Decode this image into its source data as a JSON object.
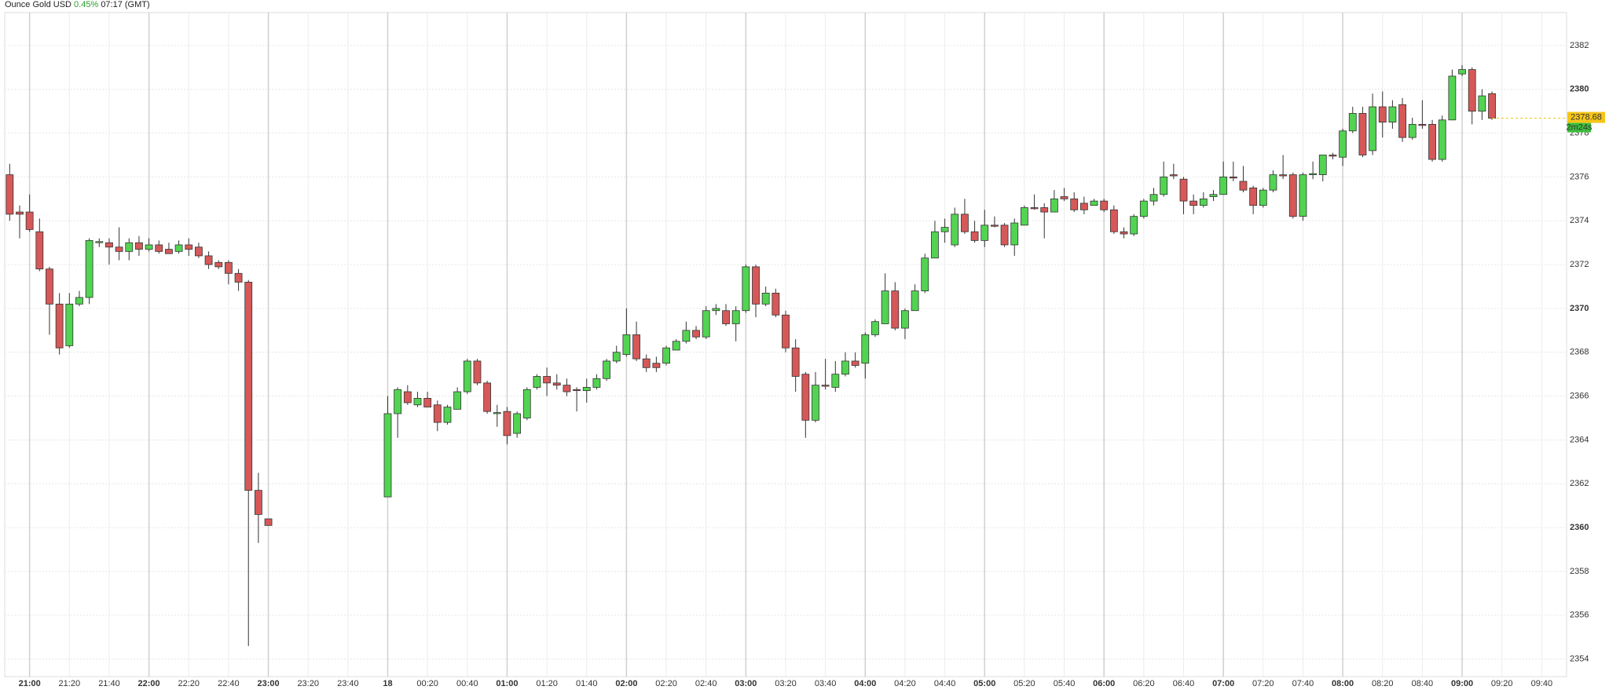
{
  "chart_data": {
    "type": "candlestick",
    "title": "Ounce Gold USD",
    "change": "0.45%",
    "time": "07:17 (GMT)",
    "countdown": "2m24s",
    "up_color": "#52d452",
    "down_color": "#d65858",
    "grid": true,
    "ylim": [
      2353.2,
      2383.5
    ],
    "yticks": [
      2354,
      2356,
      2358,
      2360,
      2362,
      2364,
      2366,
      2368,
      2370,
      2372,
      2374,
      2376,
      2378,
      2380,
      2382
    ],
    "categories": [
      null,
      null,
      "21:00",
      null,
      null,
      null,
      "21:20",
      null,
      null,
      null,
      "21:40",
      null,
      null,
      null,
      "22:00",
      null,
      null,
      null,
      "22:20",
      null,
      null,
      null,
      "22:40",
      null,
      null,
      null,
      "23:00",
      null,
      null,
      null,
      "23:20",
      null,
      null,
      null,
      "23:40",
      null,
      null,
      null,
      "18",
      null,
      null,
      null,
      "00:20",
      null,
      null,
      null,
      "00:40",
      null,
      null,
      null,
      "01:00",
      null,
      null,
      null,
      "01:20",
      null,
      null,
      null,
      "01:40",
      null,
      null,
      null,
      "02:00",
      null,
      null,
      null,
      "02:20",
      null,
      null,
      null,
      "02:40",
      null,
      null,
      null,
      "03:00",
      null,
      null,
      null,
      "03:20",
      null,
      null,
      null,
      "03:40",
      null,
      null,
      null,
      "04:00",
      null,
      null,
      null,
      "04:20",
      null,
      null,
      null,
      "04:40",
      null,
      null,
      null,
      "05:00",
      null,
      null,
      null,
      "05:20",
      null,
      null,
      null,
      "05:40",
      null,
      null,
      null,
      "06:00",
      null,
      null,
      null,
      "06:20",
      null,
      null,
      null,
      "06:40",
      null,
      null,
      null,
      "07:00",
      null,
      null,
      null,
      "07:20",
      null,
      null,
      null,
      "07:40",
      null,
      null,
      null,
      "08:00",
      null,
      null,
      null,
      "08:20",
      null,
      null,
      null,
      "08:40",
      null,
      null,
      null,
      "09:00",
      null,
      null,
      null,
      "09:20",
      null,
      null,
      null,
      "09:40",
      null,
      null
    ],
    "open": [
      2376.1,
      2374.4,
      2374.4,
      2373.5,
      2371.8,
      2370.2,
      2368.3,
      2370.2,
      2370.5,
      2373.0,
      2373.0,
      2372.8,
      2372.6,
      2373.0,
      2372.7,
      2372.9,
      2372.7,
      2372.6,
      2372.9,
      2372.8,
      2372.4,
      2372.1,
      2372.1,
      2371.6,
      2371.2,
      2361.7,
      2360.4,
      null,
      null,
      null,
      null,
      null,
      null,
      null,
      null,
      null,
      null,
      null,
      2361.4,
      2365.2,
      2366.2,
      2365.6,
      2365.9,
      2365.6,
      2364.8,
      2365.4,
      2366.2,
      2367.6,
      2366.6,
      2365.2,
      2365.3,
      2364.3,
      2365.0,
      2366.4,
      2366.9,
      2366.6,
      2366.5,
      2366.3,
      2366.25,
      2366.4,
      2366.8,
      2367.6,
      2367.9,
      2368.8,
      2367.7,
      2367.5,
      2367.5,
      2368.1,
      2368.5,
      2369.0,
      2368.7,
      2369.9,
      2369.9,
      2369.3,
      2369.9,
      2371.9,
      2370.2,
      2370.7,
      2369.7,
      2368.2,
      2367.0,
      2364.9,
      2366.5,
      2366.4,
      2367.0,
      2367.6,
      2367.5,
      2368.8,
      2369.3,
      2370.8,
      2369.1,
      2369.9,
      2370.8,
      2372.3,
      2373.5,
      2372.9,
      2374.3,
      2373.5,
      2373.1,
      2373.8,
      2373.8,
      2372.9,
      2373.8,
      2374.6,
      2374.6,
      2374.4,
      2375.1,
      2375.0,
      2374.8,
      2374.7,
      2374.9,
      2374.5,
      2373.5,
      2373.4,
      2374.2,
      2374.9,
      2375.2,
      2376.1,
      2375.9,
      2374.9,
      2374.7,
      2375.1,
      2375.2,
      2376.0,
      2375.8,
      2375.5,
      2374.7,
      2375.4,
      2376.1,
      2376.1,
      2374.2,
      2376.1,
      2376.1,
      2377.0,
      2376.9,
      2378.1,
      2378.9,
      2377.2,
      2379.2,
      2378.5,
      2379.3,
      2377.8,
      2378.4,
      2378.4,
      2376.8,
      2378.6,
      2380.7,
      2380.9,
      2379.0,
      2379.8,
      null,
      null,
      null,
      null,
      null,
      null,
      null
    ],
    "high": [
      2376.6,
      2374.7,
      2375.2,
      2374.1,
      2371.9,
      2370.7,
      2370.7,
      2370.8,
      2373.2,
      2373.2,
      2373.2,
      2373.7,
      2373.2,
      2373.3,
      2373.2,
      2373.1,
      2373.0,
      2373.1,
      2373.2,
      2373.0,
      2372.6,
      2372.2,
      2372.2,
      2371.8,
      2371.3,
      2362.5,
      2360.4,
      null,
      null,
      null,
      null,
      null,
      null,
      null,
      null,
      null,
      null,
      null,
      2366.0,
      2366.4,
      2366.5,
      2366.2,
      2366.2,
      2365.8,
      2365.6,
      2366.4,
      2367.7,
      2367.7,
      2366.7,
      2365.6,
      2365.5,
      2365.3,
      2366.4,
      2367.0,
      2367.3,
      2367.0,
      2366.8,
      2366.4,
      2366.8,
      2367.0,
      2367.7,
      2368.3,
      2370.0,
      2369.4,
      2367.9,
      2367.8,
      2368.3,
      2368.6,
      2369.4,
      2369.2,
      2370.1,
      2370.2,
      2370.2,
      2370.1,
      2372.0,
      2372.0,
      2371.0,
      2370.9,
      2369.9,
      2368.6,
      2367.1,
      2367.1,
      2367.7,
      2367.6,
      2368.0,
      2368.0,
      2368.9,
      2369.5,
      2371.6,
      2371.2,
      2370.0,
      2371.1,
      2372.5,
      2374.0,
      2374.1,
      2374.6,
      2375.0,
      2374.0,
      2374.5,
      2374.2,
      2373.9,
      2374.1,
      2374.7,
      2375.2,
      2374.8,
      2375.4,
      2375.5,
      2375.3,
      2375.1,
      2375.0,
      2375.0,
      2374.7,
      2373.7,
      2374.3,
      2375.0,
      2375.5,
      2376.7,
      2376.6,
      2376.0,
      2375.2,
      2375.3,
      2375.4,
      2376.7,
      2376.7,
      2376.5,
      2375.6,
      2375.5,
      2376.3,
      2377.0,
      2376.2,
      2376.2,
      2376.7,
      2377.0,
      2377.1,
      2378.2,
      2379.2,
      2379.2,
      2379.8,
      2379.9,
      2379.5,
      2379.6,
      2378.7,
      2379.5,
      2378.6,
      2378.8,
      2380.9,
      2381.1,
      2381.0,
      2380.0,
      2379.9,
      null,
      null,
      null,
      null,
      null,
      null,
      null
    ],
    "low": [
      2374.0,
      2373.2,
      2373.5,
      2371.7,
      2368.8,
      2367.9,
      2368.2,
      2370.1,
      2370.2,
      2372.8,
      2372.0,
      2372.2,
      2372.2,
      2372.4,
      2372.6,
      2372.5,
      2372.5,
      2372.5,
      2372.4,
      2372.3,
      2371.8,
      2371.8,
      2371.1,
      2370.8,
      2354.6,
      2359.3,
      2360.1,
      null,
      null,
      null,
      null,
      null,
      null,
      null,
      null,
      null,
      null,
      null,
      2361.4,
      2364.1,
      2365.6,
      2365.5,
      2365.5,
      2364.4,
      2364.7,
      2365.4,
      2366.1,
      2366.5,
      2365.2,
      2364.6,
      2363.8,
      2364.1,
      2364.9,
      2366.3,
      2366.0,
      2366.3,
      2366.0,
      2365.3,
      2365.7,
      2366.3,
      2366.7,
      2367.5,
      2367.8,
      2367.6,
      2367.1,
      2367.1,
      2367.4,
      2368.1,
      2368.4,
      2368.6,
      2368.6,
      2369.7,
      2369.2,
      2368.5,
      2369.8,
      2369.6,
      2370.1,
      2369.6,
      2368.0,
      2366.2,
      2364.1,
      2364.8,
      2366.3,
      2366.2,
      2366.9,
      2367.3,
      2366.8,
      2368.7,
      2369.3,
      2369.0,
      2368.6,
      2369.9,
      2370.7,
      2372.3,
      2373.0,
      2372.8,
      2373.4,
      2373.0,
      2372.8,
      2373.7,
      2372.8,
      2372.4,
      2373.8,
      2374.5,
      2373.2,
      2374.4,
      2374.9,
      2374.4,
      2374.3,
      2374.7,
      2374.4,
      2373.4,
      2373.2,
      2373.3,
      2374.1,
      2374.7,
      2375.1,
      2375.9,
      2374.3,
      2374.3,
      2374.6,
      2374.9,
      2375.2,
      2375.8,
      2375.3,
      2374.3,
      2374.6,
      2375.3,
      2375.9,
      2374.1,
      2374.0,
      2375.9,
      2375.8,
      2376.8,
      2376.5,
      2378.0,
      2376.9,
      2377.0,
      2377.8,
      2378.2,
      2377.6,
      2377.7,
      2378.2,
      2376.7,
      2376.7,
      2378.6,
      2380.6,
      2378.4,
      2378.6,
      2378.6,
      null,
      null,
      null,
      null,
      null,
      null,
      null
    ],
    "close": [
      2374.3,
      2374.3,
      2373.6,
      2371.8,
      2370.2,
      2368.2,
      2370.2,
      2370.5,
      2373.1,
      2373.05,
      2372.8,
      2372.6,
      2373.0,
      2372.7,
      2372.9,
      2372.6,
      2372.5,
      2372.9,
      2372.7,
      2372.4,
      2372.0,
      2371.9,
      2371.6,
      2371.2,
      2361.7,
      2360.6,
      2360.1,
      null,
      null,
      null,
      null,
      null,
      null,
      null,
      null,
      null,
      null,
      null,
      2365.2,
      2366.3,
      2365.7,
      2365.9,
      2365.5,
      2364.8,
      2365.5,
      2366.2,
      2367.6,
      2366.6,
      2365.3,
      2365.25,
      2364.2,
      2365.2,
      2366.3,
      2366.9,
      2366.6,
      2366.5,
      2366.2,
      2366.25,
      2366.4,
      2366.8,
      2367.6,
      2368.0,
      2368.8,
      2367.7,
      2367.3,
      2367.3,
      2368.2,
      2368.5,
      2369.0,
      2368.7,
      2369.9,
      2370.0,
      2369.3,
      2369.9,
      2371.9,
      2370.2,
      2370.7,
      2369.7,
      2368.2,
      2366.9,
      2364.9,
      2366.5,
      2366.45,
      2367.0,
      2367.6,
      2367.4,
      2368.8,
      2369.4,
      2370.8,
      2369.1,
      2369.9,
      2370.8,
      2372.3,
      2373.5,
      2373.7,
      2374.3,
      2373.5,
      2373.1,
      2373.8,
      2373.75,
      2372.9,
      2373.9,
      2374.6,
      2374.55,
      2374.4,
      2375.0,
      2375.0,
      2374.5,
      2374.5,
      2374.9,
      2374.5,
      2373.5,
      2373.4,
      2374.2,
      2374.9,
      2375.2,
      2376.0,
      2376.05,
      2374.9,
      2374.7,
      2375.0,
      2375.2,
      2376.0,
      2375.95,
      2375.4,
      2374.7,
      2375.4,
      2376.1,
      2376.05,
      2374.2,
      2376.1,
      2376.15,
      2377.0,
      2376.95,
      2378.1,
      2378.9,
      2377.0,
      2379.2,
      2378.5,
      2379.2,
      2377.8,
      2378.4,
      2378.35,
      2376.8,
      2378.6,
      2380.6,
      2380.9,
      2379.0,
      2379.7,
      2378.68,
      null,
      null,
      null,
      null,
      null,
      null,
      null
    ]
  }
}
